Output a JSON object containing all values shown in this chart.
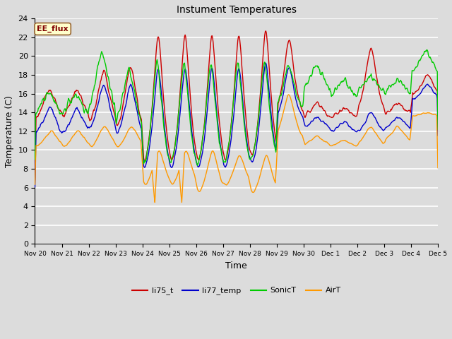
{
  "title": "Instument Temperatures",
  "xlabel": "Time",
  "ylabel": "Temperature (C)",
  "ylim": [
    0,
    24
  ],
  "background_color": "#dcdcdc",
  "plot_bg_color": "#dcdcdc",
  "grid_color": "#ffffff",
  "annotation_text": "EE_flux",
  "annotation_bg": "#ffffcc",
  "annotation_border": "#996633",
  "annotation_text_color": "#800000",
  "series_colors": {
    "li75_t": "#cc0000",
    "li77_temp": "#0000cc",
    "SonicT": "#00cc00",
    "AirT": "#ff9900"
  },
  "tick_labels": [
    "Nov 20",
    "Nov 21",
    "Nov 22",
    "Nov 23",
    "Nov 24",
    "Nov 25",
    "Nov 26",
    "Nov 27",
    "Nov 28",
    "Nov 29",
    "Nov 30",
    "Dec 1",
    "Dec 2",
    "Dec 3",
    "Dec 4",
    "Dec 5"
  ],
  "yticks": [
    0,
    2,
    4,
    6,
    8,
    10,
    12,
    14,
    16,
    18,
    20,
    22,
    24
  ],
  "n_days": 15,
  "pts_per_day": 48,
  "figsize": [
    6.4,
    4.8
  ],
  "dpi": 100
}
